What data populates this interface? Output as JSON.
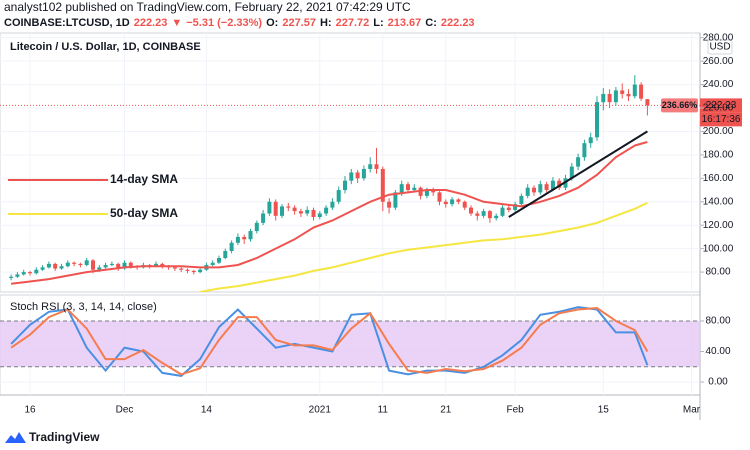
{
  "header": {
    "publisher": "analyst102 published on TradingView.com, February 22, 2021 07:42:29 UTC",
    "quote": [
      {
        "text": "COINBASE:LTCUSD, 1D",
        "color": "#131722"
      },
      {
        "text": "222.23",
        "color": "#ef5350"
      },
      {
        "text": "▼",
        "color": "#ef5350"
      },
      {
        "text": "−5.31 (−2.33%)",
        "color": "#ef5350"
      },
      {
        "text": "O:",
        "color": "#131722"
      },
      {
        "text": "227.57",
        "color": "#ef5350"
      },
      {
        "text": "H:",
        "color": "#131722"
      },
      {
        "text": "227.72",
        "color": "#ef5350"
      },
      {
        "text": "L:",
        "color": "#131722"
      },
      {
        "text": "213.67",
        "color": "#ef5350"
      },
      {
        "text": "C:",
        "color": "#131722"
      },
      {
        "text": "222.23",
        "color": "#ef5350"
      }
    ]
  },
  "chart_data": [
    {
      "type": "candlestick",
      "title": "Litecoin / U.S. Dollar, 1D, COINBASE",
      "currency": "USD",
      "up_color": "#26a69a",
      "down_color": "#ef5350",
      "grid": true,
      "ylim": [
        63,
        284
      ],
      "yticks": [
        {
          "value": 80,
          "label": "80.00"
        },
        {
          "value": 100,
          "label": "100.00"
        },
        {
          "value": 120,
          "label": "120.00"
        },
        {
          "value": 140,
          "label": "140.00"
        },
        {
          "value": 160,
          "label": "160.00"
        },
        {
          "value": 180,
          "label": "180.00"
        },
        {
          "value": 200,
          "label": "200.00"
        },
        {
          "value": 220,
          "label": "220.00"
        },
        {
          "value": 240,
          "label": "240.00"
        },
        {
          "value": 260,
          "label": "260.00"
        },
        {
          "value": 280,
          "label": "280.00"
        }
      ],
      "xticks": [
        {
          "value": "2020-11-16",
          "label": "16"
        },
        {
          "value": "2020-12-01",
          "label": "Dec"
        },
        {
          "value": "2020-12-14",
          "label": "14"
        },
        {
          "value": "2021-01-01",
          "label": "2021"
        },
        {
          "value": "2021-01-11",
          "label": "11"
        },
        {
          "value": "2021-01-21",
          "label": "21"
        },
        {
          "value": "2021-02-01",
          "label": "Feb"
        },
        {
          "value": "2021-02-15",
          "label": "15"
        },
        {
          "value": "2021-03-01",
          "label": "Mar"
        }
      ],
      "x": [
        "2020-11-13",
        "2020-11-14",
        "2020-11-15",
        "2020-11-16",
        "2020-11-17",
        "2020-11-18",
        "2020-11-19",
        "2020-11-20",
        "2020-11-21",
        "2020-11-22",
        "2020-11-23",
        "2020-11-24",
        "2020-11-25",
        "2020-11-26",
        "2020-11-27",
        "2020-11-28",
        "2020-11-29",
        "2020-11-30",
        "2020-12-01",
        "2020-12-02",
        "2020-12-03",
        "2020-12-04",
        "2020-12-05",
        "2020-12-06",
        "2020-12-07",
        "2020-12-08",
        "2020-12-09",
        "2020-12-10",
        "2020-12-11",
        "2020-12-12",
        "2020-12-13",
        "2020-12-14",
        "2020-12-15",
        "2020-12-16",
        "2020-12-17",
        "2020-12-18",
        "2020-12-19",
        "2020-12-20",
        "2020-12-21",
        "2020-12-22",
        "2020-12-23",
        "2020-12-24",
        "2020-12-25",
        "2020-12-26",
        "2020-12-27",
        "2020-12-28",
        "2020-12-29",
        "2020-12-30",
        "2020-12-31",
        "2021-01-01",
        "2021-01-02",
        "2021-01-03",
        "2021-01-04",
        "2021-01-05",
        "2021-01-06",
        "2021-01-07",
        "2021-01-08",
        "2021-01-09",
        "2021-01-10",
        "2021-01-11",
        "2021-01-12",
        "2021-01-13",
        "2021-01-14",
        "2021-01-15",
        "2021-01-16",
        "2021-01-17",
        "2021-01-18",
        "2021-01-19",
        "2021-01-20",
        "2021-01-21",
        "2021-01-22",
        "2021-01-23",
        "2021-01-24",
        "2021-01-25",
        "2021-01-26",
        "2021-01-27",
        "2021-01-28",
        "2021-01-29",
        "2021-01-30",
        "2021-01-31",
        "2021-02-01",
        "2021-02-02",
        "2021-02-03",
        "2021-02-04",
        "2021-02-05",
        "2021-02-06",
        "2021-02-07",
        "2021-02-08",
        "2021-02-09",
        "2021-02-10",
        "2021-02-11",
        "2021-02-12",
        "2021-02-13",
        "2021-02-14",
        "2021-02-15",
        "2021-02-16",
        "2021-02-17",
        "2021-02-18",
        "2021-02-19",
        "2021-02-20",
        "2021-02-21",
        "2021-02-22"
      ],
      "ohlc": [
        [
          75,
          78,
          73,
          76
        ],
        [
          76,
          80,
          75,
          78
        ],
        [
          78,
          82,
          77,
          80
        ],
        [
          80,
          81,
          77,
          79
        ],
        [
          79,
          84,
          78,
          82
        ],
        [
          82,
          86,
          81,
          84
        ],
        [
          84,
          89,
          83,
          87
        ],
        [
          87,
          88,
          81,
          83
        ],
        [
          83,
          87,
          82,
          85
        ],
        [
          85,
          90,
          84,
          88
        ],
        [
          88,
          89,
          85,
          87
        ],
        [
          87,
          88,
          84,
          86
        ],
        [
          86,
          92,
          85,
          90
        ],
        [
          90,
          91,
          79,
          82
        ],
        [
          82,
          86,
          80,
          84
        ],
        [
          84,
          88,
          83,
          86
        ],
        [
          86,
          89,
          85,
          87
        ],
        [
          87,
          88,
          81,
          83
        ],
        [
          83,
          90,
          82,
          88
        ],
        [
          88,
          89,
          83,
          85
        ],
        [
          85,
          86,
          82,
          84
        ],
        [
          84,
          88,
          83,
          86
        ],
        [
          86,
          87,
          83,
          85
        ],
        [
          85,
          89,
          84,
          87
        ],
        [
          87,
          88,
          83,
          85
        ],
        [
          85,
          86,
          82,
          84
        ],
        [
          84,
          85,
          81,
          83
        ],
        [
          83,
          84,
          80,
          82
        ],
        [
          82,
          83,
          79,
          81
        ],
        [
          81,
          82,
          78,
          80
        ],
        [
          80,
          84,
          79,
          82
        ],
        [
          82,
          88,
          81,
          86
        ],
        [
          86,
          90,
          85,
          88
        ],
        [
          88,
          94,
          87,
          92
        ],
        [
          92,
          100,
          91,
          98
        ],
        [
          98,
          107,
          96,
          105
        ],
        [
          105,
          113,
          103,
          110
        ],
        [
          110,
          112,
          104,
          108
        ],
        [
          108,
          117,
          106,
          115
        ],
        [
          115,
          124,
          113,
          122
        ],
        [
          122,
          133,
          120,
          130
        ],
        [
          130,
          143,
          128,
          140
        ],
        [
          140,
          142,
          124,
          128
        ],
        [
          128,
          138,
          126,
          136
        ],
        [
          136,
          139,
          132,
          135
        ],
        [
          135,
          137,
          129,
          132
        ],
        [
          132,
          134,
          127,
          130
        ],
        [
          130,
          136,
          128,
          133
        ],
        [
          133,
          135,
          124,
          127
        ],
        [
          127,
          132,
          125,
          130
        ],
        [
          130,
          137,
          128,
          135
        ],
        [
          135,
          143,
          133,
          140
        ],
        [
          140,
          153,
          138,
          150
        ],
        [
          150,
          162,
          147,
          158
        ],
        [
          158,
          168,
          155,
          165
        ],
        [
          165,
          167,
          156,
          160
        ],
        [
          160,
          171,
          158,
          168
        ],
        [
          168,
          178,
          165,
          172
        ],
        [
          172,
          186,
          164,
          168
        ],
        [
          168,
          170,
          132,
          140
        ],
        [
          140,
          143,
          130,
          135
        ],
        [
          135,
          150,
          133,
          148
        ],
        [
          148,
          158,
          145,
          155
        ],
        [
          155,
          157,
          147,
          150
        ],
        [
          150,
          155,
          148,
          152
        ],
        [
          152,
          153,
          142,
          145
        ],
        [
          145,
          152,
          143,
          150
        ],
        [
          150,
          152,
          145,
          148
        ],
        [
          148,
          149,
          137,
          140
        ],
        [
          140,
          142,
          135,
          138
        ],
        [
          138,
          144,
          136,
          142
        ],
        [
          142,
          143,
          138,
          140
        ],
        [
          140,
          141,
          133,
          135
        ],
        [
          135,
          137,
          128,
          130
        ],
        [
          130,
          132,
          124,
          128
        ],
        [
          128,
          134,
          126,
          132
        ],
        [
          132,
          133,
          122,
          126
        ],
        [
          126,
          130,
          124,
          128
        ],
        [
          128,
          137,
          127,
          135
        ],
        [
          135,
          137,
          131,
          133
        ],
        [
          133,
          140,
          131,
          138
        ],
        [
          138,
          147,
          136,
          145
        ],
        [
          145,
          155,
          143,
          152
        ],
        [
          152,
          154,
          145,
          148
        ],
        [
          148,
          158,
          146,
          155
        ],
        [
          155,
          157,
          148,
          150
        ],
        [
          150,
          161,
          149,
          158
        ],
        [
          158,
          160,
          150,
          152
        ],
        [
          152,
          163,
          150,
          160
        ],
        [
          160,
          173,
          158,
          170
        ],
        [
          170,
          181,
          167,
          178
        ],
        [
          178,
          193,
          175,
          190
        ],
        [
          190,
          199,
          186,
          195
        ],
        [
          195,
          230,
          192,
          225
        ],
        [
          225,
          237,
          218,
          232
        ],
        [
          232,
          236,
          220,
          225
        ],
        [
          225,
          238,
          222,
          235
        ],
        [
          235,
          241,
          228,
          232
        ],
        [
          232,
          236,
          226,
          230
        ],
        [
          230,
          248,
          228,
          240
        ],
        [
          240,
          242,
          226,
          228
        ],
        [
          227.57,
          227.72,
          213.67,
          222.23
        ]
      ],
      "series": [
        {
          "name": "14-day SMA",
          "color": "#ef5350",
          "x": [
            "2020-11-13",
            "2020-11-16",
            "2020-11-19",
            "2020-11-22",
            "2020-11-25",
            "2020-11-28",
            "2020-12-01",
            "2020-12-04",
            "2020-12-07",
            "2020-12-10",
            "2020-12-13",
            "2020-12-16",
            "2020-12-19",
            "2020-12-22",
            "2020-12-25",
            "2020-12-28",
            "2020-12-31",
            "2021-01-03",
            "2021-01-06",
            "2021-01-09",
            "2021-01-12",
            "2021-01-15",
            "2021-01-18",
            "2021-01-21",
            "2021-01-24",
            "2021-01-27",
            "2021-01-30",
            "2021-02-02",
            "2021-02-05",
            "2021-02-08",
            "2021-02-11",
            "2021-02-14",
            "2021-02-17",
            "2021-02-20",
            "2021-02-22"
          ],
          "values": [
            70,
            72,
            74,
            77,
            80,
            82,
            84,
            85,
            85,
            85,
            84,
            84,
            86,
            92,
            100,
            108,
            118,
            124,
            132,
            140,
            146,
            148,
            150,
            150,
            146,
            140,
            138,
            136,
            140,
            145,
            152,
            163,
            178,
            188,
            191
          ]
        },
        {
          "name": "50-day SMA",
          "color": "#f5e642",
          "x": [
            "2020-11-13",
            "2020-11-16",
            "2020-11-19",
            "2020-11-22",
            "2020-11-25",
            "2020-11-28",
            "2020-12-01",
            "2020-12-04",
            "2020-12-07",
            "2020-12-10",
            "2020-12-13",
            "2020-12-16",
            "2020-12-19",
            "2020-12-22",
            "2020-12-25",
            "2020-12-28",
            "2020-12-31",
            "2021-01-03",
            "2021-01-06",
            "2021-01-09",
            "2021-01-12",
            "2021-01-15",
            "2021-01-18",
            "2021-01-21",
            "2021-01-24",
            "2021-01-27",
            "2021-01-30",
            "2021-02-02",
            "2021-02-05",
            "2021-02-08",
            "2021-02-11",
            "2021-02-14",
            "2021-02-17",
            "2021-02-20",
            "2021-02-22"
          ],
          "values": [
            null,
            null,
            null,
            null,
            null,
            null,
            null,
            null,
            null,
            null,
            63,
            66,
            68,
            71,
            74,
            77,
            81,
            84,
            88,
            92,
            96,
            99,
            101,
            103,
            105,
            107,
            108,
            110,
            112,
            115,
            118,
            122,
            128,
            134,
            139
          ]
        }
      ],
      "trendline": {
        "color": "#131722",
        "x": [
          "2021-01-31",
          "2021-02-22"
        ],
        "values": [
          127,
          200
        ]
      },
      "last_price": {
        "value": 222.23,
        "label": "222.23"
      },
      "change_label": "236.66%",
      "countdown": "16:17:36"
    },
    {
      "type": "line",
      "title": "Stoch RSI (3, 3, 14, 14, close)",
      "ylim": [
        -17,
        114
      ],
      "yticks": [
        {
          "value": 80,
          "label": "80.00"
        },
        {
          "value": 40,
          "label": "40.00"
        },
        {
          "value": 0,
          "label": "0.00"
        }
      ],
      "band": [
        20,
        80
      ],
      "band_color": "#e6c8f5",
      "x": [
        "2020-11-13",
        "2020-11-16",
        "2020-11-19",
        "2020-11-22",
        "2020-11-25",
        "2020-11-28",
        "2020-12-01",
        "2020-12-04",
        "2020-12-07",
        "2020-12-10",
        "2020-12-13",
        "2020-12-16",
        "2020-12-19",
        "2020-12-22",
        "2020-12-25",
        "2020-12-28",
        "2020-12-31",
        "2021-01-03",
        "2021-01-06",
        "2021-01-09",
        "2021-01-12",
        "2021-01-15",
        "2021-01-18",
        "2021-01-21",
        "2021-01-24",
        "2021-01-27",
        "2021-01-30",
        "2021-02-02",
        "2021-02-05",
        "2021-02-08",
        "2021-02-11",
        "2021-02-14",
        "2021-02-17",
        "2021-02-20",
        "2021-02-22"
      ],
      "series": [
        {
          "color": "#4a90e2",
          "values": [
            50,
            75,
            92,
            95,
            45,
            15,
            45,
            40,
            12,
            8,
            30,
            72,
            95,
            70,
            45,
            50,
            45,
            40,
            88,
            90,
            15,
            10,
            15,
            15,
            12,
            20,
            35,
            55,
            88,
            92,
            98,
            95,
            65,
            65,
            22
          ]
        },
        {
          "color": "#f57c4f",
          "values": [
            45,
            62,
            85,
            95,
            70,
            30,
            30,
            42,
            25,
            10,
            18,
            55,
            85,
            85,
            55,
            48,
            48,
            42,
            70,
            90,
            50,
            15,
            12,
            17,
            14,
            17,
            28,
            45,
            75,
            90,
            95,
            97,
            80,
            68,
            40
          ]
        }
      ]
    }
  ],
  "footer": {
    "brand": "TradingView"
  }
}
